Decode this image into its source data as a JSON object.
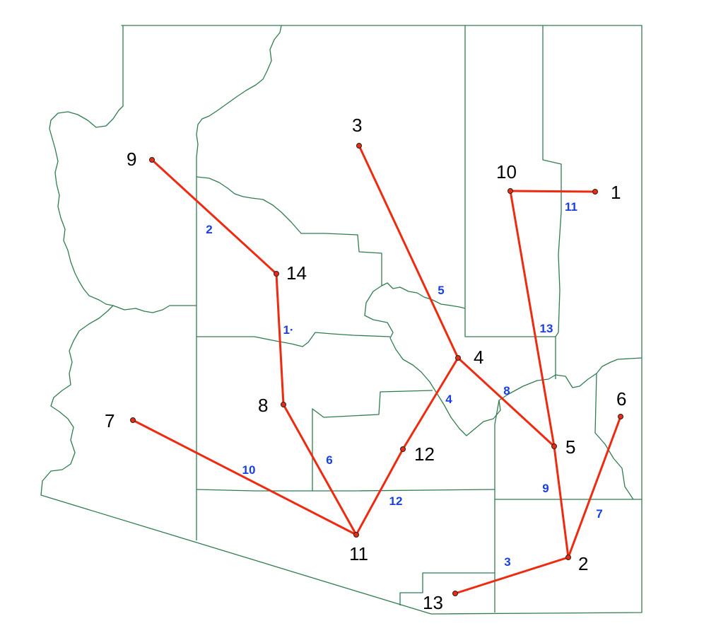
{
  "colors": {
    "county_border": "#2f7d4f",
    "route": "#ee2a10",
    "edge_label": "#1a3fe0",
    "node_label": "#000000"
  },
  "nodes": [
    {
      "id": "1",
      "label": "1"
    },
    {
      "id": "2",
      "label": "2"
    },
    {
      "id": "3",
      "label": "3"
    },
    {
      "id": "4",
      "label": "4"
    },
    {
      "id": "5",
      "label": "5"
    },
    {
      "id": "6",
      "label": "6"
    },
    {
      "id": "7",
      "label": "7"
    },
    {
      "id": "8",
      "label": "8"
    },
    {
      "id": "9",
      "label": "9"
    },
    {
      "id": "10",
      "label": "10"
    },
    {
      "id": "11",
      "label": "11"
    },
    {
      "id": "12",
      "label": "12"
    },
    {
      "id": "13",
      "label": "13"
    },
    {
      "id": "14",
      "label": "14"
    }
  ],
  "edges": [
    {
      "from": "10",
      "to": "1",
      "label": "11"
    },
    {
      "from": "9",
      "to": "14",
      "label": "2"
    },
    {
      "from": "14",
      "to": "8",
      "label": "1·"
    },
    {
      "from": "3",
      "to": "4",
      "label": "5"
    },
    {
      "from": "10",
      "to": "5",
      "label": "13"
    },
    {
      "from": "4",
      "to": "5",
      "label": "8"
    },
    {
      "from": "4",
      "to": "12",
      "label": "4"
    },
    {
      "from": "12",
      "to": "11",
      "label": "12"
    },
    {
      "from": "8",
      "to": "11",
      "label": "6"
    },
    {
      "from": "7",
      "to": "11",
      "label": "10"
    },
    {
      "from": "5",
      "to": "2",
      "label": "9"
    },
    {
      "from": "6",
      "to": "2",
      "label": "7"
    },
    {
      "from": "13",
      "to": "2",
      "label": "3"
    }
  ]
}
